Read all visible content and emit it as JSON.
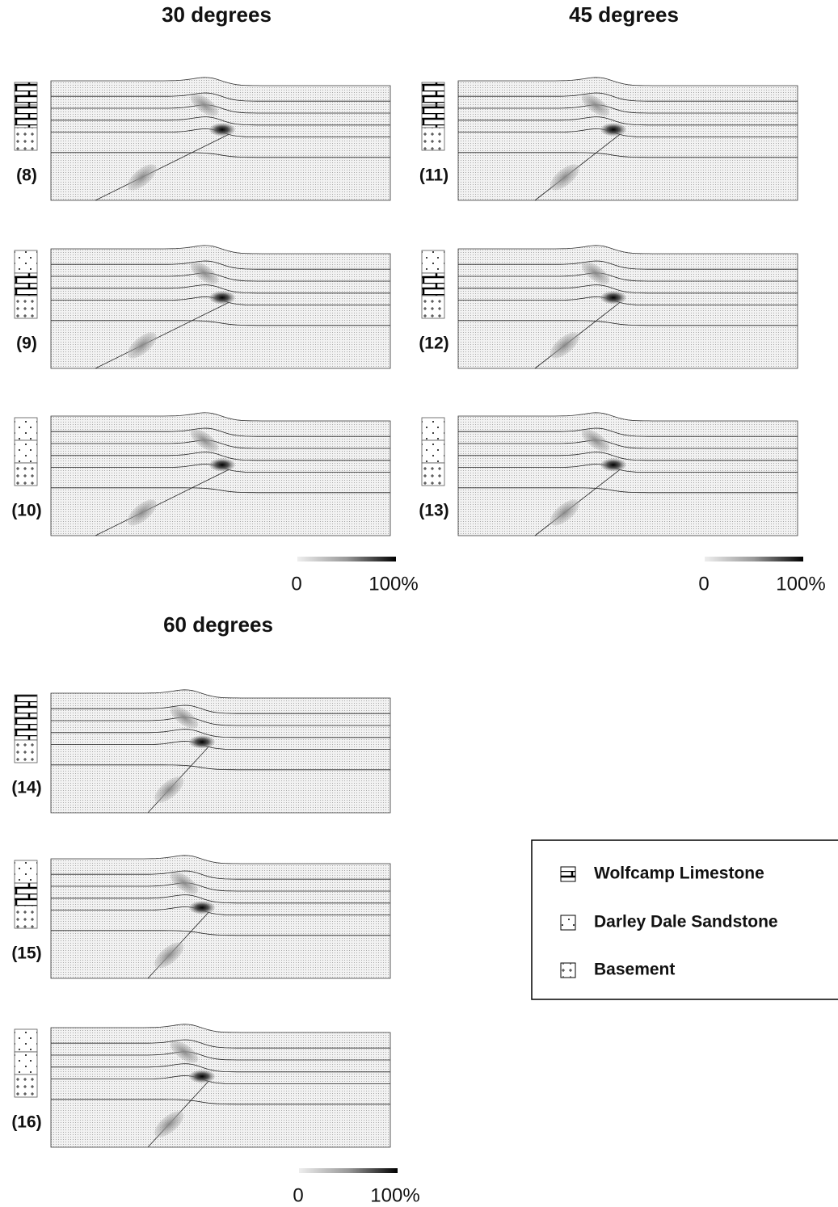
{
  "titles": [
    "30 degrees",
    "45 degrees",
    "60 degrees"
  ],
  "panels": [
    {
      "label": "(8)"
    },
    {
      "label": "(9)"
    },
    {
      "label": "(10)"
    },
    {
      "label": "(11)"
    },
    {
      "label": "(12)"
    },
    {
      "label": "(13)"
    },
    {
      "label": "(14)"
    },
    {
      "label": "(15)"
    },
    {
      "label": "(16)"
    }
  ],
  "colorbars": [
    {
      "min": "0",
      "max": "100%"
    },
    {
      "min": "0",
      "max": "100%"
    },
    {
      "min": "0",
      "max": "100%"
    }
  ],
  "legend": {
    "items": [
      "Wolfcamp Limestone",
      "Darley Dale Sandstone",
      "Basement"
    ]
  }
}
